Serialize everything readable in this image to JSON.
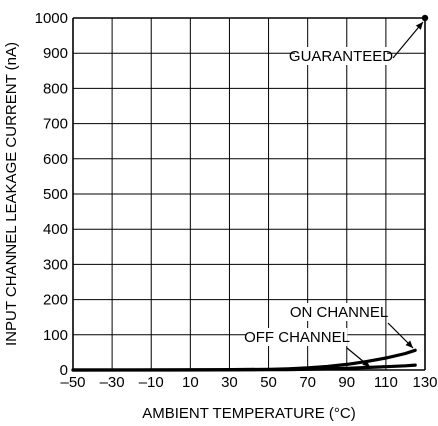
{
  "chart_data": {
    "type": "line",
    "title": "",
    "xlabel": "AMBIENT TEMPERATURE (°C)",
    "ylabel": "INPUT CHANNEL LEAKAGE CURRENT (nA)",
    "xlim": [
      -50,
      130
    ],
    "ylim": [
      0,
      1000
    ],
    "x_ticks": [
      -50,
      -30,
      -10,
      10,
      30,
      50,
      70,
      90,
      110,
      130
    ],
    "x_tick_labels": [
      "–50",
      "–30",
      "–10",
      "10",
      "30",
      "50",
      "70",
      "90",
      "110",
      "130"
    ],
    "y_ticks": [
      0,
      100,
      200,
      300,
      400,
      500,
      600,
      700,
      800,
      900,
      1000
    ],
    "y_tick_labels": [
      "0",
      "100",
      "200",
      "300",
      "400",
      "500",
      "600",
      "700",
      "800",
      "900",
      "1000"
    ],
    "grid": true,
    "series": [
      {
        "name": "ON CHANNEL",
        "x": [
          -50,
          0,
          25,
          50,
          60,
          70,
          80,
          90,
          100,
          110,
          120,
          125
        ],
        "y": [
          0.1,
          0.3,
          0.8,
          2,
          3.5,
          6,
          10,
          16,
          24,
          34,
          47,
          56
        ]
      },
      {
        "name": "OFF CHANNEL",
        "x": [
          -50,
          0,
          25,
          50,
          60,
          70,
          80,
          90,
          100,
          110,
          120,
          125
        ],
        "y": [
          0.05,
          0.1,
          0.3,
          0.8,
          1.2,
          2,
          3.2,
          4.8,
          7,
          9.5,
          12,
          14
        ]
      }
    ],
    "points": [
      {
        "name": "GUARANTEED",
        "x": 130,
        "y": 1000
      }
    ],
    "annotations": [
      {
        "text": "GUARANTEED",
        "target": "GUARANTEED"
      },
      {
        "text": "ON CHANNEL",
        "target": "ON CHANNEL"
      },
      {
        "text": "OFF CHANNEL",
        "target": "OFF CHANNEL"
      }
    ]
  }
}
